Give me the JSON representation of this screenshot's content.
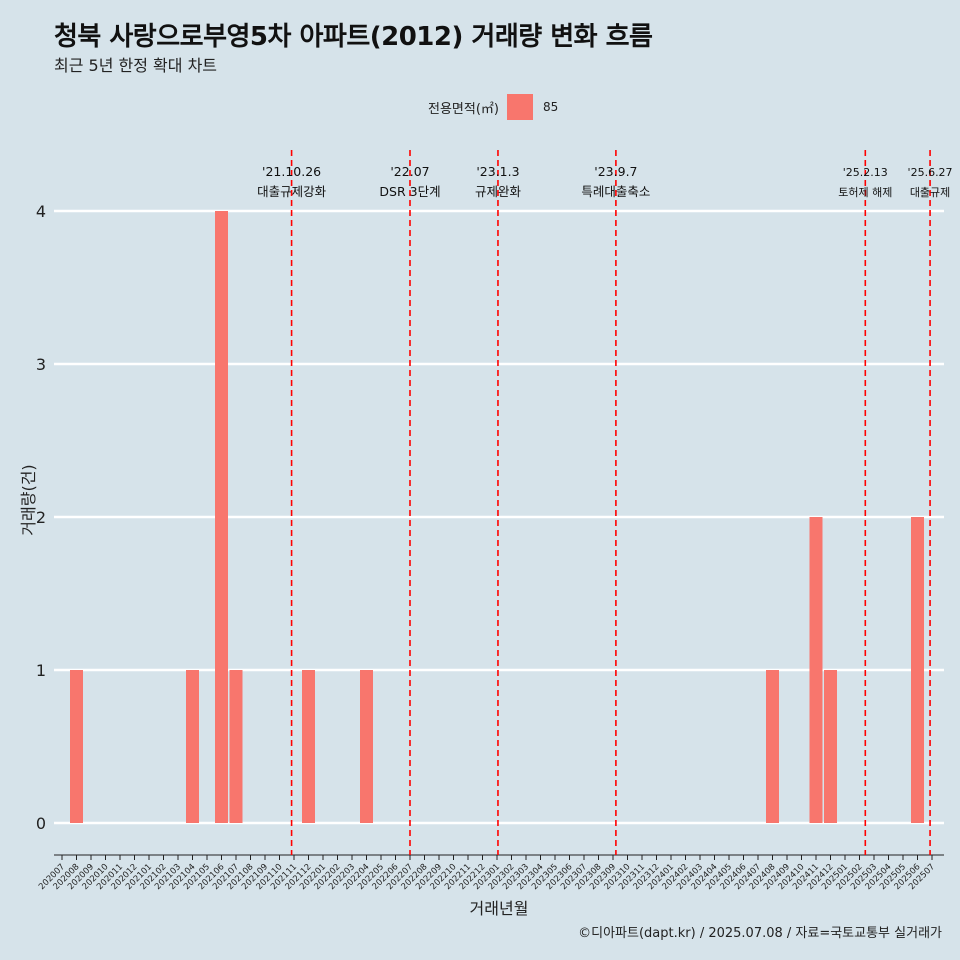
{
  "title": "청북 사랑으로부영5차 아파트(2012) 거래량 변화 흐름",
  "subtitle": "최근 5년 한정 확대 차트",
  "caption": "©디아파트(dapt.kr) / 2025.07.08 / 자료=국토교통부 실거래가",
  "legend": {
    "title": "전용면적(㎡)",
    "label": "85"
  },
  "colors": {
    "bar": "#f8766d",
    "event_line": "#ff0000",
    "background": "#d6e3ea",
    "grid": "#ffffff"
  },
  "chart_data": {
    "type": "bar",
    "xlabel": "거래년월",
    "ylabel": "거래량(건)",
    "ylim": [
      0,
      4
    ],
    "yticks": [
      0,
      1,
      2,
      3,
      4
    ],
    "grid": true,
    "legend_position": "top",
    "categories": [
      "202007",
      "202008",
      "202009",
      "202010",
      "202011",
      "202012",
      "202101",
      "202102",
      "202103",
      "202104",
      "202105",
      "202106",
      "202107",
      "202108",
      "202109",
      "202110",
      "202111",
      "202112",
      "202201",
      "202202",
      "202203",
      "202204",
      "202205",
      "202206",
      "202207",
      "202208",
      "202209",
      "202210",
      "202211",
      "202212",
      "202301",
      "202302",
      "202303",
      "202304",
      "202305",
      "202306",
      "202307",
      "202308",
      "202309",
      "202310",
      "202311",
      "202312",
      "202401",
      "202402",
      "202403",
      "202404",
      "202405",
      "202406",
      "202407",
      "202408",
      "202409",
      "202410",
      "202411",
      "202412",
      "202501",
      "202502",
      "202503",
      "202504",
      "202505",
      "202506",
      "202507"
    ],
    "series": [
      {
        "name": "85",
        "values": [
          0,
          1,
          0,
          0,
          0,
          0,
          0,
          0,
          0,
          1,
          0,
          4,
          1,
          0,
          0,
          0,
          0,
          1,
          0,
          0,
          0,
          1,
          0,
          0,
          0,
          0,
          0,
          0,
          0,
          0,
          0,
          0,
          0,
          0,
          0,
          0,
          0,
          0,
          0,
          0,
          0,
          0,
          0,
          0,
          0,
          0,
          0,
          0,
          0,
          1,
          0,
          0,
          2,
          1,
          0,
          0,
          0,
          0,
          0,
          2,
          0
        ]
      }
    ],
    "events": [
      {
        "date": "2021-10-26",
        "label_date": "'21.10.26",
        "label": "대출규제강화"
      },
      {
        "date": "2022-07-01",
        "label_date": "'22.07",
        "label": "DSR 3단계"
      },
      {
        "date": "2023-01-03",
        "label_date": "'23.1.3",
        "label": "규제완화"
      },
      {
        "date": "2023-09-07",
        "label_date": "'23.9.7",
        "label": "특례대출축소"
      },
      {
        "date": "2025-02-13",
        "label_date": "'25.2.13",
        "label": "토허제 해제"
      },
      {
        "date": "2025-06-27",
        "label_date": "'25.6.27",
        "label": "대출규제"
      }
    ]
  }
}
